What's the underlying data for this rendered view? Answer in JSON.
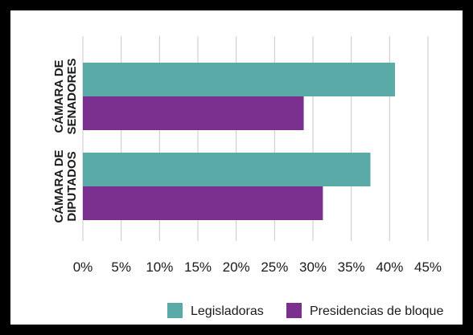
{
  "chart_data": {
    "type": "bar",
    "orientation": "horizontal",
    "categories": [
      {
        "lines": [
          "CÁMARA DE",
          "SENADORES"
        ]
      },
      {
        "lines": [
          "CÁMARA DE",
          "DIPUTADOS"
        ]
      }
    ],
    "series": [
      {
        "name": "Legisladoras",
        "color": "#5aaba8",
        "values": [
          40.7,
          37.5
        ]
      },
      {
        "name": "Presidencias de bloque",
        "color": "#7b2f8f",
        "values": [
          28.8,
          31.3
        ]
      }
    ],
    "xlim": [
      0,
      45
    ],
    "xticks": [
      "0%",
      "5%",
      "10%",
      "15%",
      "20%",
      "25%",
      "30%",
      "35%",
      "40%",
      "45%"
    ],
    "xtick_values": [
      0,
      5,
      10,
      15,
      20,
      25,
      30,
      35,
      40,
      45
    ],
    "grid": "vertical",
    "legend": "bottom-right"
  }
}
